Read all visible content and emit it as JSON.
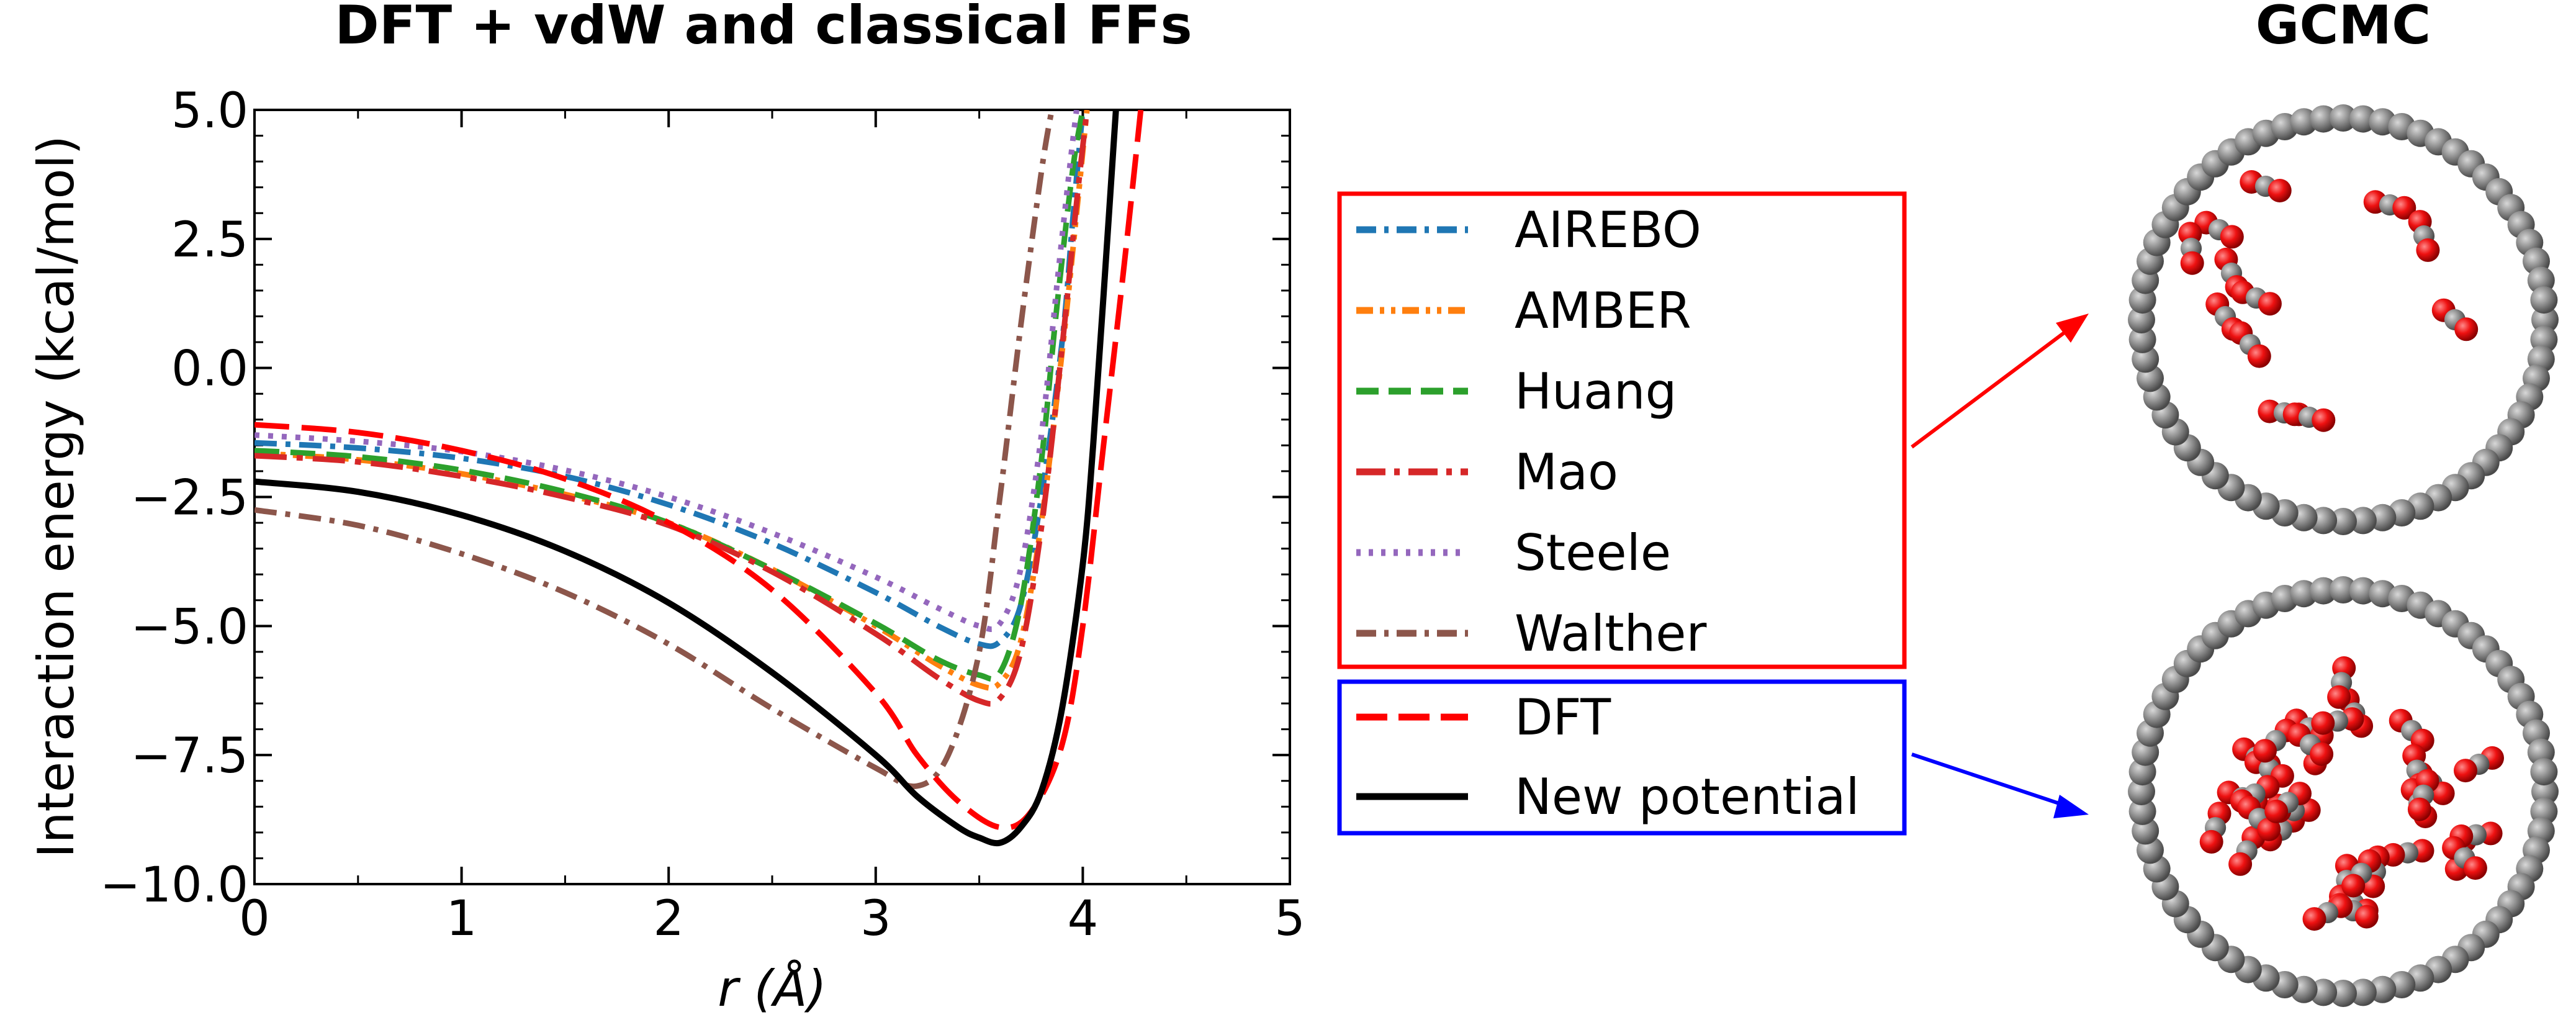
{
  "titles": {
    "left": "DFT + vdW and classical FFs",
    "right": "GCMC"
  },
  "colors": {
    "airebo": "#1f77b4",
    "amber": "#ff7f0e",
    "huang": "#2ca02c",
    "mao": "#d62728",
    "steele": "#9467bd",
    "walther": "#8c564b",
    "dft": "#ff0000",
    "new": "#000000",
    "box_ff": "#ff0000",
    "box_dft": "#0000ff",
    "atom_c": "#808080",
    "atom_o": "#ee1111"
  },
  "chart_data": {
    "type": "line",
    "xlabel": "r (Å)",
    "ylabel": "Interaction energy (kcal/mol)",
    "xlim": [
      0,
      5
    ],
    "ylim": [
      -10,
      5
    ],
    "xticks": [
      "0",
      "1",
      "2",
      "3",
      "4",
      "5"
    ],
    "yticks": [
      "5.0",
      "2.5",
      "0.0",
      "−2.5",
      "−5.0",
      "−7.5",
      "−10.0"
    ],
    "xtick_values": [
      0,
      1,
      2,
      3,
      4,
      5
    ],
    "ytick_values": [
      5,
      2.5,
      0,
      -2.5,
      -5,
      -7.5,
      -10
    ],
    "grid": false,
    "series": [
      {
        "name": "AIREBO",
        "style": "dashdot",
        "color": "#1f77b4",
        "points": [
          [
            0,
            -1.45
          ],
          [
            0.5,
            -1.55
          ],
          [
            1.0,
            -1.75
          ],
          [
            1.5,
            -2.1
          ],
          [
            2.0,
            -2.65
          ],
          [
            2.5,
            -3.4
          ],
          [
            3.0,
            -4.35
          ],
          [
            3.3,
            -5.0
          ],
          [
            3.5,
            -5.35
          ],
          [
            3.6,
            -5.3
          ],
          [
            3.7,
            -4.6
          ],
          [
            3.8,
            -2.5
          ],
          [
            3.9,
            0.5
          ],
          [
            3.95,
            2.8
          ],
          [
            4.0,
            5.0
          ]
        ]
      },
      {
        "name": "AMBER",
        "style": "dashdotdot",
        "color": "#ff7f0e",
        "points": [
          [
            0,
            -1.65
          ],
          [
            0.5,
            -1.78
          ],
          [
            1.0,
            -2.05
          ],
          [
            1.5,
            -2.45
          ],
          [
            2.0,
            -3.0
          ],
          [
            2.5,
            -3.9
          ],
          [
            3.0,
            -5.0
          ],
          [
            3.3,
            -5.75
          ],
          [
            3.5,
            -6.15
          ],
          [
            3.6,
            -6.1
          ],
          [
            3.7,
            -5.3
          ],
          [
            3.8,
            -3.0
          ],
          [
            3.9,
            0.3
          ],
          [
            3.97,
            3.0
          ],
          [
            4.02,
            5.0
          ]
        ]
      },
      {
        "name": "Huang",
        "style": "dashed",
        "color": "#2ca02c",
        "points": [
          [
            0,
            -1.6
          ],
          [
            0.5,
            -1.72
          ],
          [
            1.0,
            -1.98
          ],
          [
            1.5,
            -2.4
          ],
          [
            2.0,
            -3.0
          ],
          [
            2.5,
            -3.9
          ],
          [
            3.0,
            -4.95
          ],
          [
            3.3,
            -5.65
          ],
          [
            3.5,
            -5.95
          ],
          [
            3.6,
            -5.9
          ],
          [
            3.7,
            -4.6
          ],
          [
            3.8,
            -1.8
          ],
          [
            3.87,
            1.0
          ],
          [
            3.95,
            3.8
          ],
          [
            4.0,
            5.0
          ]
        ]
      },
      {
        "name": "Mao",
        "style": "longdashdot",
        "color": "#d62728",
        "points": [
          [
            0,
            -1.7
          ],
          [
            0.5,
            -1.82
          ],
          [
            1.0,
            -2.1
          ],
          [
            1.5,
            -2.5
          ],
          [
            2.0,
            -3.05
          ],
          [
            2.5,
            -3.95
          ],
          [
            3.0,
            -5.15
          ],
          [
            3.3,
            -6.0
          ],
          [
            3.5,
            -6.45
          ],
          [
            3.6,
            -6.4
          ],
          [
            3.7,
            -5.5
          ],
          [
            3.8,
            -3.1
          ],
          [
            3.9,
            0.4
          ],
          [
            3.97,
            3.2
          ],
          [
            4.02,
            5.0
          ]
        ]
      },
      {
        "name": "Steele",
        "style": "dotted",
        "color": "#9467bd",
        "points": [
          [
            0,
            -1.3
          ],
          [
            0.5,
            -1.42
          ],
          [
            1.0,
            -1.62
          ],
          [
            1.5,
            -1.98
          ],
          [
            2.0,
            -2.5
          ],
          [
            2.5,
            -3.2
          ],
          [
            3.0,
            -4.05
          ],
          [
            3.3,
            -4.65
          ],
          [
            3.5,
            -5.0
          ],
          [
            3.6,
            -4.95
          ],
          [
            3.7,
            -3.9
          ],
          [
            3.8,
            -1.3
          ],
          [
            3.88,
            1.8
          ],
          [
            3.94,
            4.0
          ],
          [
            3.97,
            5.0
          ]
        ]
      },
      {
        "name": "Walther",
        "style": "dashdot",
        "color": "#8c564b",
        "points": [
          [
            0,
            -2.75
          ],
          [
            0.5,
            -3.05
          ],
          [
            1.0,
            -3.6
          ],
          [
            1.5,
            -4.35
          ],
          [
            2.0,
            -5.35
          ],
          [
            2.5,
            -6.6
          ],
          [
            3.0,
            -7.75
          ],
          [
            3.2,
            -8.1
          ],
          [
            3.35,
            -7.5
          ],
          [
            3.5,
            -5.5
          ],
          [
            3.6,
            -2.5
          ],
          [
            3.7,
            0.8
          ],
          [
            3.8,
            3.8
          ],
          [
            3.85,
            5.0
          ]
        ]
      },
      {
        "name": "DFT",
        "style": "longdash",
        "color": "#ff0000",
        "points": [
          [
            0,
            -1.1
          ],
          [
            0.5,
            -1.25
          ],
          [
            1.0,
            -1.6
          ],
          [
            1.5,
            -2.15
          ],
          [
            2.0,
            -3.0
          ],
          [
            2.5,
            -4.3
          ],
          [
            3.0,
            -6.3
          ],
          [
            3.2,
            -7.5
          ],
          [
            3.4,
            -8.4
          ],
          [
            3.6,
            -8.9
          ],
          [
            3.75,
            -8.6
          ],
          [
            3.9,
            -7.3
          ],
          [
            4.0,
            -5.0
          ],
          [
            4.1,
            -1.5
          ],
          [
            4.2,
            2.0
          ],
          [
            4.28,
            5.0
          ]
        ]
      },
      {
        "name": "New potential",
        "style": "solid",
        "color": "#000000",
        "points": [
          [
            0,
            -2.2
          ],
          [
            0.5,
            -2.4
          ],
          [
            1.0,
            -2.85
          ],
          [
            1.5,
            -3.55
          ],
          [
            2.0,
            -4.55
          ],
          [
            2.5,
            -5.9
          ],
          [
            3.0,
            -7.5
          ],
          [
            3.2,
            -8.3
          ],
          [
            3.4,
            -8.9
          ],
          [
            3.5,
            -9.1
          ],
          [
            3.6,
            -9.2
          ],
          [
            3.7,
            -8.9
          ],
          [
            3.8,
            -8.2
          ],
          [
            3.9,
            -6.6
          ],
          [
            4.0,
            -3.8
          ],
          [
            4.05,
            -1.5
          ],
          [
            4.1,
            1.4
          ],
          [
            4.16,
            5.0
          ]
        ]
      }
    ],
    "legend_placement": "right of plot",
    "legend_groups": [
      {
        "box": "red",
        "entries": [
          "AIREBO",
          "AMBER",
          "Huang",
          "Mao",
          "Steele",
          "Walther"
        ]
      },
      {
        "box": "blue",
        "entries": [
          "DFT",
          "New potential"
        ]
      }
    ]
  }
}
